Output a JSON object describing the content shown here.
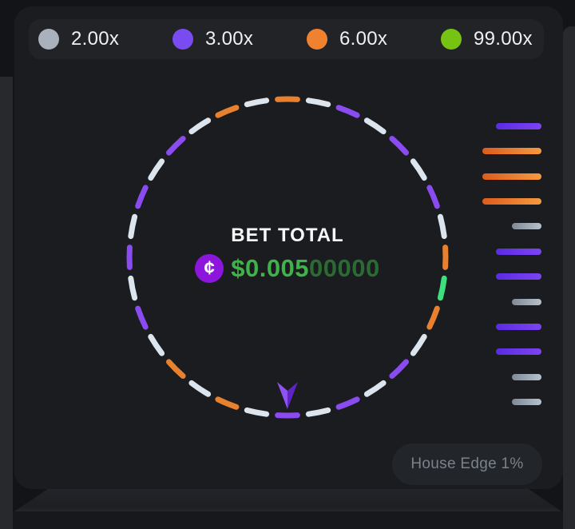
{
  "theme": {
    "page_bg": "#131418",
    "panel_bg": "#1a1c1f",
    "legend_bg": "#212327",
    "edge_strip": "#27292d",
    "coin_purple": "#8d16dc",
    "amount_green": "#3fb24a",
    "amount_green_dim": "#2b6a33"
  },
  "legend": {
    "items": [
      {
        "id": "gray",
        "label": "2.00x",
        "color": "#a9b2bc"
      },
      {
        "id": "purple",
        "label": "3.00x",
        "color": "#7a4bf0"
      },
      {
        "id": "orange",
        "label": "6.00x",
        "color": "#ef812f"
      },
      {
        "id": "green",
        "label": "99.00x",
        "color": "#77c314"
      }
    ]
  },
  "wheel": {
    "colors": {
      "gray": "#dce4ed",
      "purple": "#8a4bf0",
      "orange": "#e8812f",
      "green": "#3ce07c"
    },
    "segments": [
      "orange",
      "gray",
      "purple",
      "gray",
      "purple",
      "gray",
      "purple",
      "gray",
      "orange",
      "green",
      "orange",
      "gray",
      "purple",
      "gray",
      "purple",
      "gray",
      "purple",
      "gray",
      "orange",
      "gray",
      "orange",
      "gray",
      "purple",
      "gray",
      "purple",
      "gray",
      "purple",
      "gray",
      "purple",
      "gray",
      "orange",
      "gray"
    ]
  },
  "bet": {
    "label": "BET TOTAL",
    "coin_glyph": "¢",
    "amount_primary": "$0.005",
    "amount_secondary": "00000"
  },
  "history": {
    "bars": [
      "purple",
      "orange",
      "orange",
      "orange",
      "gray",
      "purple",
      "purple",
      "gray",
      "purple",
      "purple",
      "gray",
      "gray"
    ]
  },
  "footer": {
    "house_edge_label": "House Edge 1%"
  }
}
